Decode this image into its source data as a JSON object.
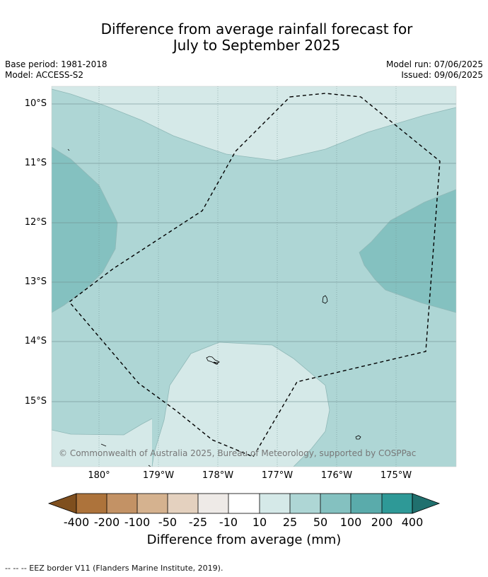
{
  "title_line1": "Difference from average rainfall forecast for",
  "title_line2": "July to September 2025",
  "base_period": "Base period: 1981-2018",
  "model": "Model: ACCESS-S2",
  "model_run": "Model run: 07/06/2025",
  "issued": "Issued: 09/06/2025",
  "copyright": "© Commonwealth of Australia 2025, Bureau of Meteorology, supported by COSPPac",
  "lat_labels": [
    "10°S",
    "11°S",
    "12°S",
    "13°S",
    "14°S",
    "15°S"
  ],
  "lon_labels": [
    "180°",
    "179°W",
    "178°W",
    "177°W",
    "176°W",
    "175°W"
  ],
  "colorbar": {
    "ticks": [
      "-400",
      "-200",
      "-100",
      "-50",
      "-25",
      "-10",
      "10",
      "25",
      "50",
      "100",
      "200",
      "400"
    ],
    "colors": [
      "#7f4f1e",
      "#ad733b",
      "#c39265",
      "#d5b28f",
      "#e4d1bf",
      "#eeeae7",
      "#ffffff",
      "#d5e9e8",
      "#aed6d5",
      "#84c1c0",
      "#5aabab",
      "#2e9997",
      "#20706e"
    ],
    "title": "Difference from average (mm)"
  },
  "footer": "--  --  -- EEZ border V11 (Flanders Marine Institute, 2019)."
}
